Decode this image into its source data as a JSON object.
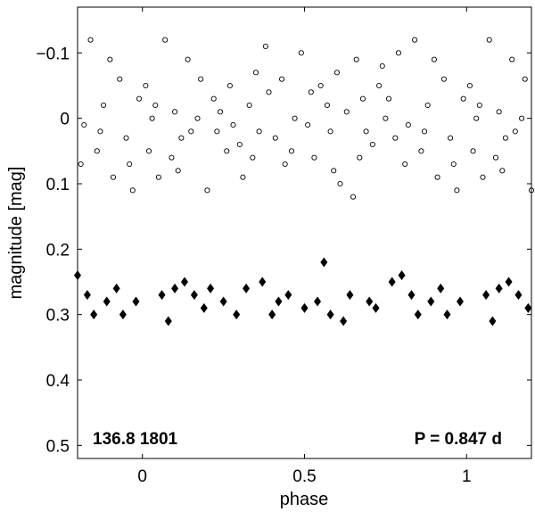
{
  "chart_data": {
    "type": "scatter",
    "xlabel": "phase",
    "ylabel": "magnitude  [mag]",
    "xlim": [
      -0.2,
      1.2
    ],
    "ylim": [
      0.52,
      -0.17
    ],
    "y_inverted": true,
    "x_ticks": [
      0,
      0.5,
      1
    ],
    "x_tick_labels": [
      "0",
      "0.5",
      "1"
    ],
    "y_ticks": [
      -0.1,
      0,
      0.1,
      0.2,
      0.3,
      0.4,
      0.5
    ],
    "y_tick_labels": [
      "−0.1",
      "0",
      "0.1",
      "0.2",
      "0.3",
      "0.4",
      "0.5"
    ],
    "grid": false,
    "annotations": {
      "left": "136.8 1801",
      "right": "P = 0.847 d"
    },
    "series": [
      {
        "marker": "open-circle",
        "color": "#000000",
        "phase_period_repeat": 1.0,
        "points": [
          [
            0.03,
            0.0
          ],
          [
            0.1,
            -0.01
          ],
          [
            0.15,
            0.02
          ],
          [
            0.22,
            -0.03
          ],
          [
            0.28,
            0.01
          ],
          [
            0.33,
            -0.02
          ],
          [
            0.41,
            0.03
          ],
          [
            0.47,
            0.0
          ],
          [
            0.52,
            -0.04
          ],
          [
            0.58,
            0.02
          ],
          [
            0.63,
            -0.01
          ],
          [
            0.71,
            0.04
          ],
          [
            0.76,
            -0.03
          ],
          [
            0.82,
            0.01
          ],
          [
            0.88,
            -0.02
          ],
          [
            0.95,
            0.03
          ],
          [
            0.01,
            -0.05
          ],
          [
            0.09,
            0.06
          ],
          [
            0.18,
            -0.06
          ],
          [
            0.26,
            0.05
          ],
          [
            0.35,
            -0.07
          ],
          [
            0.44,
            0.07
          ],
          [
            0.55,
            -0.05
          ],
          [
            0.67,
            0.06
          ],
          [
            0.74,
            -0.08
          ],
          [
            0.86,
            0.05
          ],
          [
            0.93,
            -0.06
          ],
          [
            0.05,
            0.09
          ],
          [
            0.14,
            -0.09
          ],
          [
            0.31,
            0.09
          ],
          [
            0.49,
            -0.1
          ],
          [
            0.61,
            0.1
          ],
          [
            0.79,
            -0.1
          ],
          [
            0.91,
            0.09
          ],
          [
            0.07,
            -0.12
          ],
          [
            0.2,
            0.11
          ],
          [
            0.38,
            -0.11
          ],
          [
            0.65,
            0.12
          ],
          [
            0.84,
            -0.12
          ],
          [
            0.97,
            0.11
          ],
          [
            0.12,
            0.03
          ],
          [
            0.24,
            -0.01
          ],
          [
            0.3,
            0.04
          ],
          [
            0.39,
            -0.04
          ],
          [
            0.46,
            0.05
          ],
          [
            0.57,
            -0.02
          ],
          [
            0.69,
            0.02
          ],
          [
            0.73,
            -0.05
          ],
          [
            0.81,
            0.07
          ],
          [
            0.99,
            -0.03
          ],
          [
            0.02,
            0.05
          ],
          [
            0.17,
            0.0
          ],
          [
            0.27,
            -0.05
          ],
          [
            0.36,
            0.02
          ],
          [
            0.53,
            0.06
          ],
          [
            0.6,
            -0.07
          ],
          [
            0.68,
            -0.03
          ],
          [
            0.78,
            0.03
          ],
          [
            0.9,
            -0.09
          ],
          [
            0.96,
            0.07
          ],
          [
            0.04,
            -0.02
          ],
          [
            0.11,
            0.08
          ],
          [
            0.23,
            0.02
          ],
          [
            0.34,
            0.06
          ],
          [
            0.43,
            -0.06
          ],
          [
            0.51,
            0.01
          ],
          [
            0.59,
            0.08
          ],
          [
            0.66,
            -0.09
          ],
          [
            0.75,
            0.0
          ],
          [
            0.87,
            0.02
          ]
        ]
      },
      {
        "marker": "filled-diamond",
        "color": "#000000",
        "phase_period_repeat": 1.0,
        "points": [
          [
            0.06,
            0.27
          ],
          [
            0.13,
            0.25
          ],
          [
            0.19,
            0.29
          ],
          [
            0.25,
            0.28
          ],
          [
            0.32,
            0.26
          ],
          [
            0.4,
            0.3
          ],
          [
            0.45,
            0.27
          ],
          [
            0.5,
            0.29
          ],
          [
            0.56,
            0.22
          ],
          [
            0.62,
            0.31
          ],
          [
            0.7,
            0.28
          ],
          [
            0.77,
            0.25
          ],
          [
            0.85,
            0.3
          ],
          [
            0.92,
            0.26
          ],
          [
            0.98,
            0.28
          ],
          [
            0.08,
            0.31
          ],
          [
            0.16,
            0.27
          ],
          [
            0.29,
            0.3
          ],
          [
            0.37,
            0.25
          ],
          [
            0.54,
            0.28
          ],
          [
            0.64,
            0.27
          ],
          [
            0.72,
            0.29
          ],
          [
            0.8,
            0.24
          ],
          [
            0.89,
            0.28
          ],
          [
            0.94,
            0.3
          ],
          [
            0.1,
            0.26
          ],
          [
            0.21,
            0.26
          ],
          [
            0.42,
            0.28
          ],
          [
            0.58,
            0.3
          ],
          [
            0.83,
            0.27
          ]
        ]
      }
    ]
  }
}
